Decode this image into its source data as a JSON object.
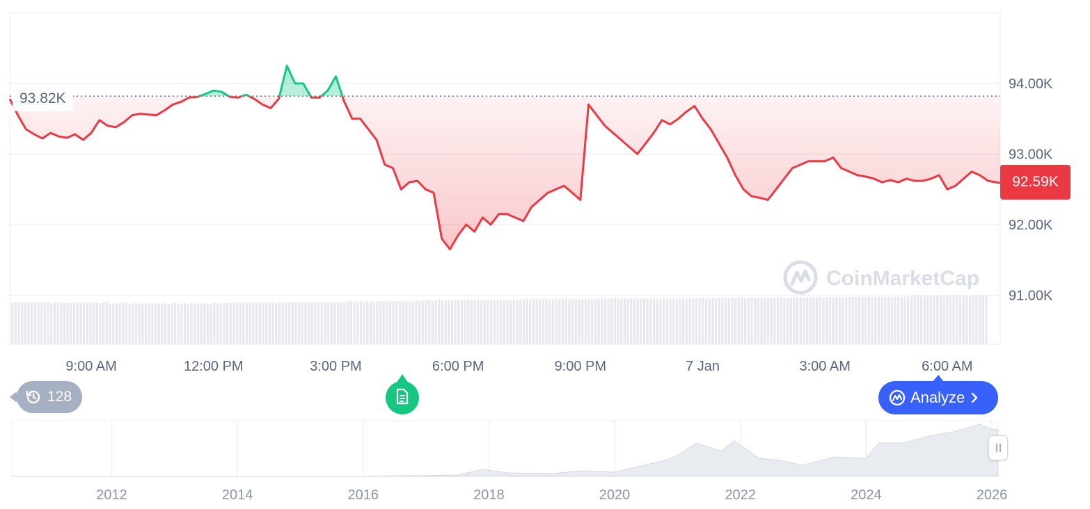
{
  "chart_data": {
    "type": "line",
    "watermark": "CoinMarketCap",
    "reference_price": 93820,
    "reference_label": "93.82K",
    "current_price": 92590,
    "current_label": "92.59K",
    "y_ticks": [
      {
        "value": 94000,
        "label": "94.00K"
      },
      {
        "value": 93000,
        "label": "93.00K"
      },
      {
        "value": 92000,
        "label": "92.00K"
      },
      {
        "value": 91000,
        "label": "91.00K"
      }
    ],
    "ylim": [
      91000,
      95000
    ],
    "xlim": [
      7.0,
      31.3
    ],
    "x_ticks": [
      {
        "value": 9,
        "label": "9:00 AM"
      },
      {
        "value": 12,
        "label": "12:00 PM"
      },
      {
        "value": 15,
        "label": "3:00 PM"
      },
      {
        "value": 18,
        "label": "6:00 PM"
      },
      {
        "value": 21,
        "label": "9:00 PM"
      },
      {
        "value": 24,
        "label": "7 Jan"
      },
      {
        "value": 27,
        "label": "3:00 AM"
      },
      {
        "value": 30,
        "label": "6:00 AM"
      }
    ],
    "series": [
      {
        "x": [
          7.0,
          7.2,
          7.4,
          7.6,
          7.8,
          8.0,
          8.2,
          8.4,
          8.6,
          8.8,
          9.0,
          9.2,
          9.4,
          9.6,
          9.8,
          10.0,
          10.2,
          10.4,
          10.6,
          10.8,
          11.0,
          11.2,
          11.4,
          11.6,
          11.8,
          12.0,
          12.2,
          12.4,
          12.6,
          12.8,
          13.0,
          13.2,
          13.4,
          13.6,
          13.8,
          14.0,
          14.2,
          14.4,
          14.6,
          14.8,
          15.0,
          15.2,
          15.4,
          15.6,
          15.8,
          16.0,
          16.2,
          16.4,
          16.6,
          16.8,
          17.0,
          17.2,
          17.4,
          17.6,
          17.8,
          18.0,
          18.2,
          18.4,
          18.6,
          18.8,
          19.0,
          19.2,
          19.4,
          19.6,
          19.8,
          20.0,
          20.2,
          20.4,
          20.6,
          20.8,
          21.0,
          21.2,
          21.4,
          21.6,
          21.8,
          22.0,
          22.2,
          22.4,
          22.6,
          22.8,
          23.0,
          23.2,
          23.4,
          23.6,
          23.8,
          24.0,
          24.2,
          24.4,
          24.6,
          24.8,
          25.0,
          25.2,
          25.4,
          25.6,
          25.8,
          26.0,
          26.2,
          26.4,
          26.6,
          26.8,
          27.0,
          27.2,
          27.4,
          27.6,
          27.8,
          28.0,
          28.2,
          28.4,
          28.6,
          28.8,
          29.0,
          29.2,
          29.4,
          29.6,
          29.8,
          30.0,
          30.2,
          30.4,
          30.6,
          30.8,
          31.0,
          31.2,
          31.3
        ],
        "y": [
          93780,
          93550,
          93350,
          93280,
          93220,
          93300,
          93250,
          93230,
          93280,
          93200,
          93300,
          93480,
          93400,
          93380,
          93450,
          93550,
          93570,
          93560,
          93550,
          93620,
          93700,
          93740,
          93800,
          93810,
          93850,
          93900,
          93880,
          93810,
          93800,
          93840,
          93780,
          93700,
          93650,
          93780,
          94250,
          94000,
          94000,
          93800,
          93800,
          93900,
          94100,
          93750,
          93500,
          93500,
          93350,
          93200,
          92850,
          92800,
          92500,
          92600,
          92620,
          92500,
          92450,
          91800,
          91650,
          91850,
          92000,
          91900,
          92100,
          92000,
          92150,
          92150,
          92100,
          92050,
          92250,
          92350,
          92450,
          92500,
          92550,
          92450,
          92350,
          93700,
          93550,
          93400,
          93300,
          93200,
          93100,
          93000,
          93150,
          93300,
          93480,
          93420,
          93500,
          93600,
          93680,
          93500,
          93350,
          93150,
          92950,
          92700,
          92500,
          92400,
          92380,
          92350,
          92500,
          92650,
          92800,
          92850,
          92900,
          92900,
          92900,
          92950,
          92800,
          92750,
          92700,
          92680,
          92650,
          92600,
          92630,
          92600,
          92650,
          92620,
          92620,
          92650,
          92700,
          92500,
          92550,
          92650,
          92750,
          92700,
          92620,
          92600,
          92590
        ]
      }
    ],
    "volume": {
      "description_hidden": true,
      "values": [
        68,
        68,
        67,
        67,
        67,
        66,
        66,
        66,
        66,
        66,
        66,
        67,
        67,
        67,
        68,
        68,
        68,
        69,
        69,
        70,
        70,
        71,
        71,
        72,
        72,
        72,
        73,
        73,
        73,
        73,
        74,
        74,
        74,
        74,
        74,
        75,
        75,
        75,
        75,
        75,
        76,
        76,
        76,
        77,
        77,
        77,
        78,
        78,
        78,
        79
      ]
    },
    "navigator": {
      "labels": [
        "2012",
        "2014",
        "2016",
        "2018",
        "2020",
        "2022",
        "2024",
        "2026"
      ],
      "x_ticks": [
        2012,
        2014,
        2016,
        2018,
        2020,
        2022,
        2024,
        2026
      ],
      "xlim": [
        2010.4,
        2026.1
      ],
      "history_x": [
        2010.4,
        2013,
        2016,
        2017.5,
        2017.9,
        2018.3,
        2019,
        2019.5,
        2020,
        2020.8,
        2021.0,
        2021.3,
        2021.7,
        2021.9,
        2022.3,
        2022.6,
        2023.0,
        2023.5,
        2024.0,
        2024.2,
        2024.6,
        2025.0,
        2025.4,
        2025.8,
        2026.0,
        2026.1
      ],
      "history_y": [
        0,
        0,
        0,
        2,
        12,
        5,
        4,
        8,
        6,
        20,
        32,
        45,
        38,
        48,
        28,
        20,
        18,
        25,
        28,
        45,
        50,
        55,
        66,
        72,
        70,
        64
      ]
    }
  },
  "badges": {
    "history_count": "128",
    "analyze_label": "Analyze"
  },
  "colors": {
    "up": "#16c784",
    "down": "#ea3943",
    "accent": "#3861fb",
    "axis_text": "#58667e"
  }
}
